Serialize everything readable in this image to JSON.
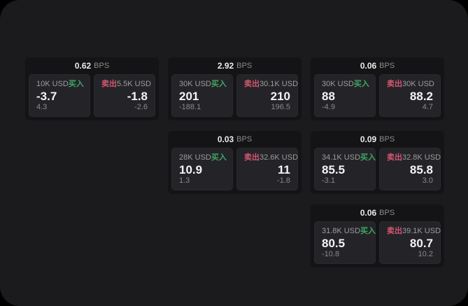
{
  "labels": {
    "buy": "买入",
    "sell": "卖出",
    "bps_unit": "BPS"
  },
  "colors": {
    "page_bg": "#1b1b1d",
    "card_bg": "#141416",
    "panel_bg": "#242428",
    "buy": "#3ea663",
    "sell": "#d45672"
  },
  "cards": [
    {
      "row": 1,
      "col": 1,
      "bps": "0.62",
      "buy": {
        "amount": "10K USD",
        "value": "-3.7",
        "delta": "4.3"
      },
      "sell": {
        "amount": "5.5K USD",
        "value": "-1.8",
        "delta": "-2.6"
      }
    },
    {
      "row": 1,
      "col": 2,
      "bps": "2.92",
      "buy": {
        "amount": "30K USD",
        "value": "201",
        "delta": "-188.1"
      },
      "sell": {
        "amount": "30.1K USD",
        "value": "210",
        "delta": "196.5"
      }
    },
    {
      "row": 1,
      "col": 3,
      "bps": "0.06",
      "buy": {
        "amount": "30K USD",
        "value": "88",
        "delta": "-4.9"
      },
      "sell": {
        "amount": "30K USD",
        "value": "88.2",
        "delta": "4.7"
      }
    },
    {
      "row": 2,
      "col": 2,
      "bps": "0.03",
      "buy": {
        "amount": "28K USD",
        "value": "10.9",
        "delta": "1.3"
      },
      "sell": {
        "amount": "32.6K USD",
        "value": "11",
        "delta": "-1.8"
      }
    },
    {
      "row": 2,
      "col": 3,
      "bps": "0.09",
      "buy": {
        "amount": "34.1K USD",
        "value": "85.5",
        "delta": "-3.1"
      },
      "sell": {
        "amount": "32.8K USD",
        "value": "85.8",
        "delta": "3.0"
      }
    },
    {
      "row": 3,
      "col": 3,
      "bps": "0.06",
      "buy": {
        "amount": "31.8K USD",
        "value": "80.5",
        "delta": "-10.8"
      },
      "sell": {
        "amount": "39.1K USD",
        "value": "80.7",
        "delta": "10.2"
      }
    }
  ]
}
